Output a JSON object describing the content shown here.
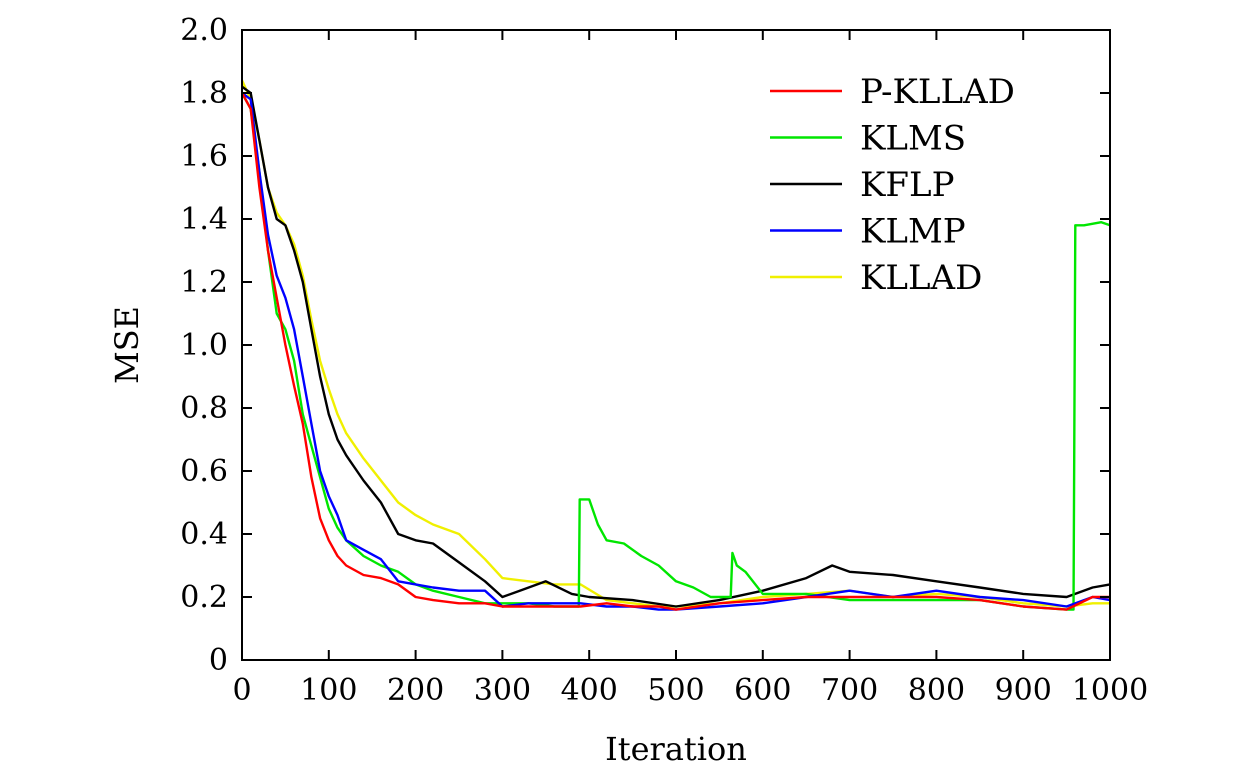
{
  "chart_data": {
    "type": "line",
    "xlabel": "Iteration",
    "ylabel": "MSE",
    "xlim": [
      0,
      1000
    ],
    "ylim": [
      0,
      2.0
    ],
    "x_ticks": [
      0,
      100,
      200,
      300,
      400,
      500,
      600,
      700,
      800,
      900,
      1000
    ],
    "x_tick_labels": [
      "0",
      "100",
      "200",
      "300",
      "400",
      "500",
      "600",
      "700",
      "800",
      "900",
      "1000"
    ],
    "y_ticks": [
      0,
      0.2,
      0.4,
      0.6,
      0.8,
      1.0,
      1.2,
      1.4,
      1.6,
      1.8,
      2.0
    ],
    "y_tick_labels": [
      "0",
      "0.2",
      "0.4",
      "0.6",
      "0.8",
      "1.0",
      "1.2",
      "1.4",
      "1.6",
      "1.8",
      "2.0"
    ],
    "grid": false,
    "legend_position": "top-right",
    "series": [
      {
        "name": "P-KLLAD",
        "color": "#ff0000",
        "x": [
          0,
          10,
          20,
          30,
          40,
          50,
          60,
          70,
          80,
          90,
          100,
          110,
          120,
          140,
          160,
          180,
          200,
          220,
          250,
          280,
          300,
          330,
          360,
          390,
          420,
          450,
          480,
          500,
          550,
          600,
          650,
          700,
          750,
          800,
          850,
          900,
          950,
          980,
          1000
        ],
        "y": [
          1.8,
          1.75,
          1.5,
          1.3,
          1.15,
          1.0,
          0.87,
          0.75,
          0.58,
          0.45,
          0.38,
          0.33,
          0.3,
          0.27,
          0.26,
          0.24,
          0.2,
          0.19,
          0.18,
          0.18,
          0.17,
          0.17,
          0.17,
          0.17,
          0.18,
          0.17,
          0.17,
          0.16,
          0.18,
          0.19,
          0.2,
          0.2,
          0.2,
          0.2,
          0.19,
          0.17,
          0.16,
          0.2,
          0.2
        ]
      },
      {
        "name": "KLMS",
        "color": "#00e600",
        "x": [
          0,
          10,
          20,
          30,
          40,
          50,
          60,
          70,
          80,
          90,
          100,
          110,
          120,
          140,
          160,
          180,
          200,
          220,
          250,
          280,
          300,
          330,
          360,
          388,
          389,
          400,
          410,
          420,
          440,
          460,
          480,
          500,
          520,
          540,
          563,
          565,
          570,
          580,
          600,
          650,
          700,
          750,
          800,
          850,
          900,
          950,
          958,
          960,
          970,
          990,
          1000
        ],
        "y": [
          1.8,
          1.75,
          1.55,
          1.3,
          1.1,
          1.05,
          0.95,
          0.78,
          0.68,
          0.58,
          0.48,
          0.42,
          0.38,
          0.33,
          0.3,
          0.28,
          0.24,
          0.22,
          0.2,
          0.18,
          0.18,
          0.18,
          0.17,
          0.17,
          0.51,
          0.51,
          0.43,
          0.38,
          0.37,
          0.33,
          0.3,
          0.25,
          0.23,
          0.2,
          0.2,
          0.34,
          0.3,
          0.28,
          0.21,
          0.21,
          0.19,
          0.19,
          0.19,
          0.19,
          0.17,
          0.16,
          0.16,
          1.38,
          1.38,
          1.39,
          1.38
        ]
      },
      {
        "name": "KFLP",
        "color": "#000000",
        "x": [
          0,
          10,
          20,
          30,
          40,
          50,
          60,
          70,
          80,
          90,
          100,
          110,
          120,
          140,
          160,
          180,
          200,
          220,
          250,
          280,
          300,
          320,
          350,
          380,
          400,
          450,
          500,
          550,
          600,
          650,
          680,
          700,
          750,
          800,
          850,
          900,
          950,
          980,
          1000
        ],
        "y": [
          1.82,
          1.8,
          1.65,
          1.5,
          1.4,
          1.38,
          1.3,
          1.2,
          1.05,
          0.9,
          0.78,
          0.7,
          0.65,
          0.57,
          0.5,
          0.4,
          0.38,
          0.37,
          0.31,
          0.25,
          0.2,
          0.22,
          0.25,
          0.21,
          0.2,
          0.19,
          0.17,
          0.19,
          0.22,
          0.26,
          0.3,
          0.28,
          0.27,
          0.25,
          0.23,
          0.21,
          0.2,
          0.23,
          0.24
        ]
      },
      {
        "name": "KLMP",
        "color": "#0000ff",
        "x": [
          0,
          10,
          20,
          30,
          40,
          50,
          60,
          70,
          80,
          90,
          100,
          110,
          120,
          140,
          160,
          180,
          200,
          220,
          250,
          280,
          300,
          330,
          360,
          390,
          420,
          450,
          480,
          500,
          550,
          600,
          650,
          700,
          750,
          800,
          850,
          900,
          950,
          980,
          1000
        ],
        "y": [
          1.8,
          1.78,
          1.55,
          1.35,
          1.22,
          1.15,
          1.05,
          0.9,
          0.75,
          0.6,
          0.52,
          0.46,
          0.38,
          0.35,
          0.32,
          0.25,
          0.24,
          0.23,
          0.22,
          0.22,
          0.17,
          0.18,
          0.18,
          0.18,
          0.17,
          0.17,
          0.16,
          0.16,
          0.17,
          0.18,
          0.2,
          0.22,
          0.2,
          0.22,
          0.2,
          0.19,
          0.17,
          0.2,
          0.19
        ]
      },
      {
        "name": "KLLAD",
        "color": "#f0f000",
        "x": [
          0,
          10,
          20,
          30,
          40,
          50,
          60,
          70,
          80,
          90,
          100,
          110,
          120,
          140,
          160,
          180,
          200,
          220,
          250,
          280,
          300,
          330,
          360,
          390,
          420,
          450,
          480,
          500,
          550,
          600,
          650,
          700,
          750,
          800,
          850,
          900,
          950,
          980,
          1000
        ],
        "y": [
          1.84,
          1.78,
          1.65,
          1.5,
          1.42,
          1.38,
          1.32,
          1.22,
          1.08,
          0.95,
          0.86,
          0.78,
          0.72,
          0.64,
          0.57,
          0.5,
          0.46,
          0.43,
          0.4,
          0.32,
          0.26,
          0.25,
          0.24,
          0.24,
          0.19,
          0.18,
          0.17,
          0.17,
          0.18,
          0.2,
          0.21,
          0.22,
          0.2,
          0.21,
          0.2,
          0.18,
          0.17,
          0.18,
          0.18
        ]
      }
    ]
  }
}
